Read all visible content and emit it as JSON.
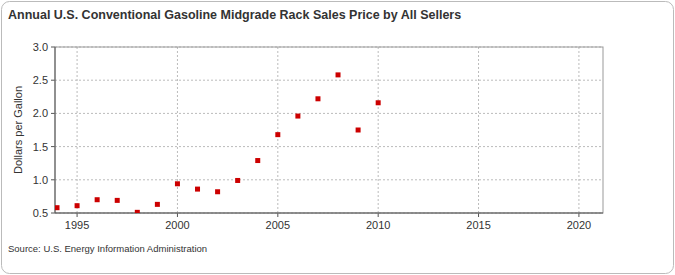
{
  "chart_data": {
    "type": "scatter",
    "title": "Annual U.S. Conventional Gasoline Midgrade Rack Sales Price by All Sellers",
    "y_label": "Dollars per Gallon",
    "source": "Source: U.S. Energy Information Administration",
    "x": [
      1994,
      1995,
      1996,
      1997,
      1998,
      1999,
      2000,
      2001,
      2002,
      2003,
      2004,
      2005,
      2006,
      2007,
      2008,
      2009,
      2010
    ],
    "values": [
      0.58,
      0.61,
      0.7,
      0.69,
      0.51,
      0.63,
      0.94,
      0.86,
      0.82,
      0.99,
      1.29,
      1.68,
      1.96,
      2.22,
      2.58,
      1.75,
      2.16
    ],
    "color": "#cc0000",
    "marker": "square",
    "xlim": [
      1993.9,
      2021.2
    ],
    "xticks": [
      1995,
      2000,
      2005,
      2010,
      2015,
      2020
    ],
    "ylim": [
      0.5,
      3.0
    ],
    "yticks": [
      0.5,
      {
        "value": 1,
        "label": "1.0"
      },
      1.5,
      {
        "value": 2,
        "label": "2.0"
      },
      2.5,
      {
        "value": 3,
        "label": "3.0"
      }
    ],
    "grid": true
  }
}
